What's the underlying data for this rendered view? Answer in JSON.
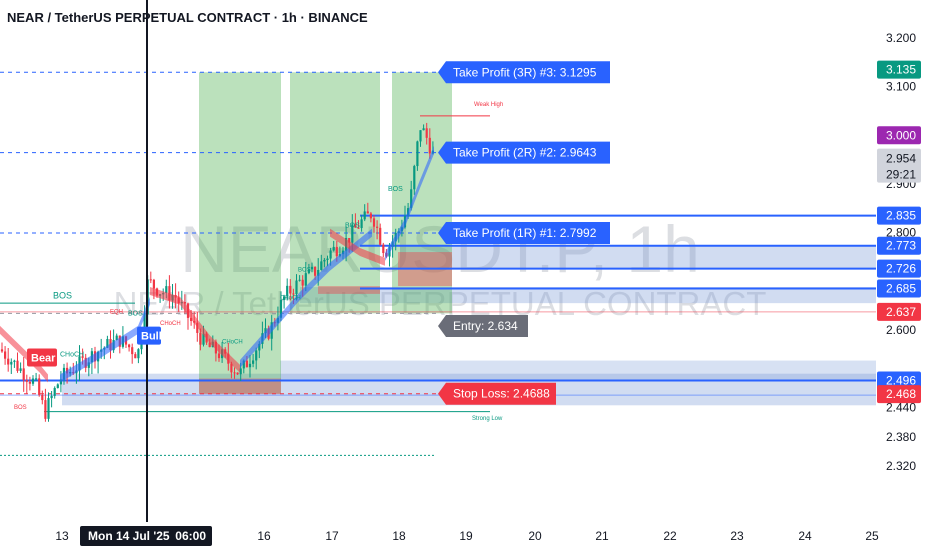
{
  "header": {
    "title": "NEAR / TetherUS PERPETUAL CONTRACT · 1h · BINANCE"
  },
  "watermark": {
    "symbol": "NEARUSDT.P, 1h",
    "name": "NEAR / TetherUS PERPETUAL CONTRACT"
  },
  "colors": {
    "background": "#ffffff",
    "candle_up": "#089981",
    "candle_down": "#f23645",
    "tp_blue": "#2962ff",
    "sl_red": "#f23645",
    "entry_gray": "#6a6d78",
    "profit_zone": "#4caf50",
    "loss_zone": "#f23645",
    "order_block": "#7b9bd8",
    "price_purple": "#9c27b0"
  },
  "chart_data": {
    "type": "candlestick",
    "symbol": "NEAR / TetherUS PERPETUAL CONTRACT",
    "interval": "1h",
    "exchange": "BINANCE",
    "x_axis_labels": [
      "13",
      "Mon 14 Jul '25",
      "06:00",
      "16",
      "17",
      "18",
      "19",
      "20",
      "21",
      "22",
      "23",
      "24",
      "25"
    ],
    "y_axis_ticks": [
      3.2,
      3.1,
      3.0,
      2.9,
      2.8,
      2.6,
      2.44,
      2.38,
      2.32
    ],
    "ylim": [
      2.28,
      3.26
    ],
    "current_price": 2.954,
    "countdown": "29:21",
    "trades": [
      {
        "label": "Take Profit (3R) #3",
        "value": 3.1295,
        "text": "Take Profit (3R) #3: 3.1295"
      },
      {
        "label": "Take Profit (2R) #2",
        "value": 2.9643,
        "text": "Take Profit (2R) #2: 2.9643"
      },
      {
        "label": "Take Profit (1R) #1",
        "value": 2.7992,
        "text": "Take Profit (1R) #1: 2.7992"
      },
      {
        "label": "Entry",
        "value": 2.634,
        "text": "Entry: 2.634"
      },
      {
        "label": "Stop Loss",
        "value": 2.4688,
        "text": "Stop Loss: 2.4688"
      }
    ],
    "price_tags": [
      {
        "value": 3.135,
        "text": "3.135",
        "color": "#089981"
      },
      {
        "value": 3.0,
        "text": "3.000",
        "color": "#9c27b0"
      },
      {
        "value": 2.835,
        "text": "2.835",
        "color": "#2962ff"
      },
      {
        "value": 2.773,
        "text": "2.773",
        "color": "#2962ff"
      },
      {
        "value": 2.726,
        "text": "2.726",
        "color": "#2962ff"
      },
      {
        "value": 2.685,
        "text": "2.685",
        "color": "#2962ff"
      },
      {
        "value": 2.637,
        "text": "2.637",
        "color": "#f23645"
      },
      {
        "value": 2.496,
        "text": "2.496",
        "color": "#2962ff"
      },
      {
        "value": 2.468,
        "text": "2.468",
        "color": "#f23645"
      }
    ],
    "annotations": [
      {
        "text": "Weak High",
        "color": "#f23645"
      },
      {
        "text": "Strong Low",
        "color": "#089981"
      },
      {
        "text": "Bear",
        "color": "#f23645"
      },
      {
        "text": "Bull",
        "color": "#2962ff"
      },
      {
        "text": "BOS",
        "color": "#089981"
      },
      {
        "text": "BOS",
        "color": "#089981"
      },
      {
        "text": "BOS",
        "color": "#089981"
      },
      {
        "text": "BOS",
        "color": "#089981"
      },
      {
        "text": "BOS",
        "color": "#089981"
      },
      {
        "text": "BOS",
        "color": "#f23645"
      },
      {
        "text": "EQH",
        "color": "#f23645"
      },
      {
        "text": "CHoCH",
        "color": "#089981"
      },
      {
        "text": "CHoCH",
        "color": "#f23645"
      },
      {
        "text": "CHoCH",
        "color": "#089981"
      },
      {
        "text": "CHoCH",
        "color": "#089981"
      }
    ]
  }
}
